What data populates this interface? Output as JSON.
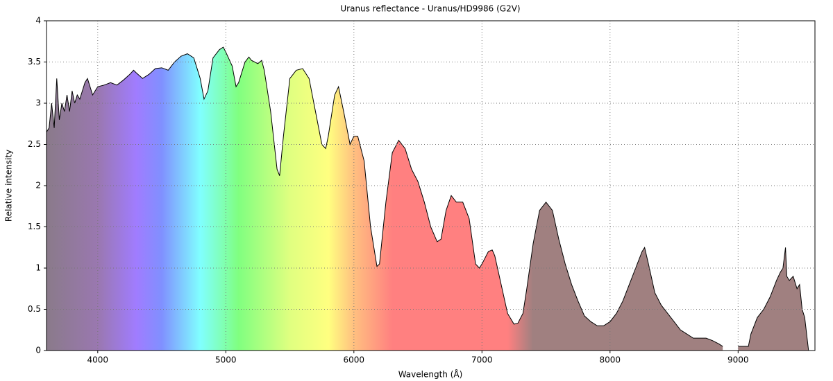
{
  "chart_data": {
    "type": "area",
    "title": "Uranus reflectance - Uranus/HD9986 (G2V)",
    "xlabel": "Wavelength (Å)",
    "ylabel": "Relative intensity",
    "xlim": [
      3600,
      9600
    ],
    "xticks": [
      4000,
      5000,
      6000,
      7000,
      8000,
      9000
    ],
    "ylim": [
      0,
      4
    ],
    "yticks": [
      0,
      0.5,
      1,
      1.5,
      2,
      2.5,
      3,
      3.5,
      4
    ],
    "grid": true,
    "color": "#000000",
    "x": [
      3600,
      3620,
      3640,
      3660,
      3680,
      3700,
      3720,
      3740,
      3760,
      3780,
      3800,
      3820,
      3840,
      3860,
      3880,
      3900,
      3920,
      3940,
      3960,
      3980,
      4000,
      4050,
      4100,
      4150,
      4200,
      4250,
      4280,
      4300,
      4350,
      4400,
      4450,
      4500,
      4550,
      4600,
      4650,
      4700,
      4750,
      4800,
      4830,
      4860,
      4900,
      4950,
      4980,
      5000,
      5050,
      5080,
      5100,
      5150,
      5180,
      5200,
      5250,
      5280,
      5300,
      5350,
      5400,
      5420,
      5450,
      5500,
      5550,
      5600,
      5650,
      5700,
      5750,
      5780,
      5800,
      5850,
      5880,
      5920,
      5970,
      6000,
      6030,
      6080,
      6130,
      6180,
      6200,
      6250,
      6300,
      6350,
      6400,
      6450,
      6500,
      6550,
      6600,
      6650,
      6680,
      6720,
      6760,
      6800,
      6850,
      6900,
      6950,
      6980,
      7000,
      7050,
      7080,
      7100,
      7150,
      7200,
      7250,
      7280,
      7320,
      7350,
      7400,
      7450,
      7500,
      7550,
      7600,
      7650,
      7700,
      7750,
      7800,
      7850,
      7900,
      7950,
      8000,
      8050,
      8100,
      8150,
      8200,
      8250,
      8270,
      8300,
      8350,
      8400,
      8450,
      8500,
      8550,
      8600,
      8650,
      8700,
      8750,
      8800,
      8850,
      8880,
      8900,
      8950,
      9000,
      9050,
      9080,
      9100,
      9150,
      9200,
      9250,
      9300,
      9330,
      9350,
      9370,
      9380,
      9400,
      9430,
      9460,
      9480,
      9500,
      9520,
      9550
    ],
    "values": [
      2.65,
      2.7,
      3.0,
      2.7,
      3.3,
      2.8,
      3.0,
      2.9,
      3.1,
      2.9,
      3.15,
      3.0,
      3.1,
      3.05,
      3.15,
      3.25,
      3.3,
      3.2,
      3.1,
      3.15,
      3.2,
      3.22,
      3.25,
      3.22,
      3.28,
      3.35,
      3.4,
      3.37,
      3.3,
      3.35,
      3.42,
      3.43,
      3.4,
      3.5,
      3.57,
      3.6,
      3.55,
      3.3,
      3.05,
      3.15,
      3.55,
      3.65,
      3.68,
      3.62,
      3.45,
      3.2,
      3.25,
      3.5,
      3.56,
      3.52,
      3.48,
      3.52,
      3.4,
      2.9,
      2.2,
      2.12,
      2.6,
      3.3,
      3.4,
      3.42,
      3.3,
      2.9,
      2.5,
      2.45,
      2.6,
      3.1,
      3.2,
      2.9,
      2.5,
      2.6,
      2.6,
      2.3,
      1.5,
      1.02,
      1.05,
      1.8,
      2.4,
      2.55,
      2.45,
      2.2,
      2.05,
      1.8,
      1.5,
      1.32,
      1.35,
      1.7,
      1.88,
      1.8,
      1.8,
      1.6,
      1.05,
      1.0,
      1.05,
      1.2,
      1.22,
      1.15,
      0.8,
      0.45,
      0.32,
      0.33,
      0.45,
      0.75,
      1.3,
      1.7,
      1.8,
      1.7,
      1.35,
      1.05,
      0.8,
      0.6,
      0.42,
      0.35,
      0.3,
      0.3,
      0.35,
      0.45,
      0.6,
      0.8,
      1.0,
      1.2,
      1.25,
      1.05,
      0.7,
      0.55,
      0.45,
      0.35,
      0.25,
      0.2,
      0.15,
      0.15,
      0.15,
      0.12,
      0.08,
      0.05,
      null,
      null,
      0.05,
      0.05,
      0.05,
      0.2,
      0.4,
      0.5,
      0.65,
      0.85,
      0.95,
      1.0,
      1.25,
      0.9,
      0.85,
      0.9,
      0.75,
      0.8,
      0.5,
      0.4,
      0.0
    ]
  }
}
